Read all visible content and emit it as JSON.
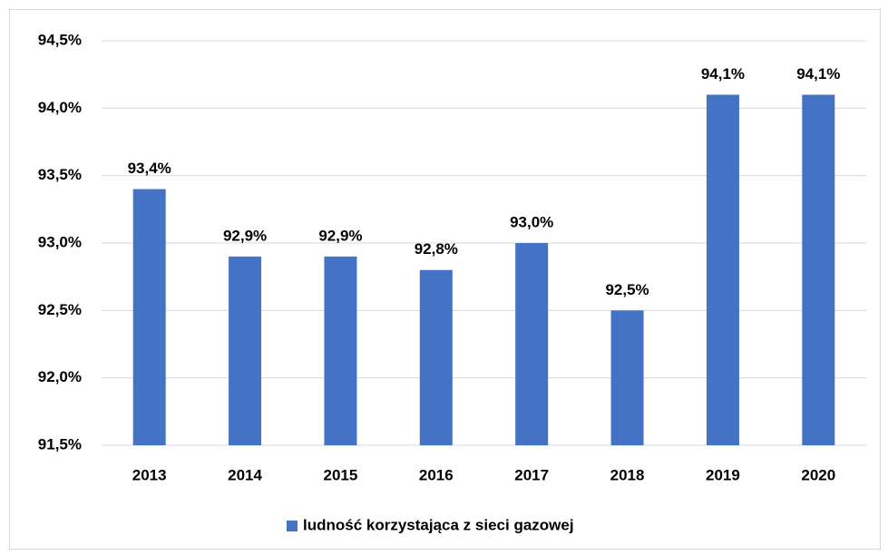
{
  "chart_data": {
    "type": "bar",
    "categories": [
      "2013",
      "2014",
      "2015",
      "2016",
      "2017",
      "2018",
      "2019",
      "2020"
    ],
    "series": [
      {
        "name": "ludność korzystająca z sieci gazowej",
        "color": "#4472c4",
        "values": [
          93.4,
          92.9,
          92.9,
          92.8,
          93.0,
          92.5,
          94.1,
          94.1
        ],
        "value_labels": [
          "93,4%",
          "92,9%",
          "92,9%",
          "92,8%",
          "93,0%",
          "92,5%",
          "94,1%",
          "94,1%"
        ]
      }
    ],
    "ylim": [
      91.5,
      94.5
    ],
    "yticks": [
      {
        "value": 91.5,
        "label": "91,5%"
      },
      {
        "value": 92.0,
        "label": "92,0%"
      },
      {
        "value": 92.5,
        "label": "92,5%"
      },
      {
        "value": 93.0,
        "label": "93,0%"
      },
      {
        "value": 93.5,
        "label": "93,5%"
      },
      {
        "value": 94.0,
        "label": "94,0%"
      },
      {
        "value": 94.5,
        "label": "94,5%"
      }
    ],
    "grid": true,
    "legend": "bottom"
  }
}
